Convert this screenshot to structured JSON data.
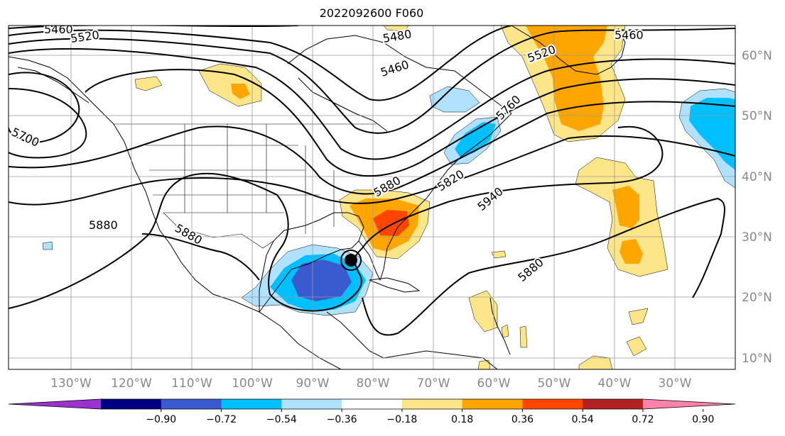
{
  "title": "2022092600 F060",
  "map": {
    "longitude_labels": [
      "130°W",
      "120°W",
      "110°W",
      "100°W",
      "90°W",
      "80°W",
      "70°W",
      "60°W",
      "50°W",
      "40°W",
      "30°W"
    ],
    "latitude_labels": [
      "60°N",
      "50°N",
      "40°N",
      "30°N",
      "20°N",
      "10°N"
    ],
    "contour_labels": [
      "5460",
      "5520",
      "5460",
      "5480",
      "5520",
      "5460",
      "5700",
      "5880",
      "5880",
      "5880",
      "5880",
      "5820",
      "5940",
      "5760"
    ],
    "storm_marker": "storm-center"
  },
  "colorbar": {
    "ticks": [
      "−0.90",
      "−0.72",
      "−0.54",
      "−0.36",
      "−0.18",
      "0.18",
      "0.36",
      "0.54",
      "0.72",
      "0.90"
    ],
    "colors": [
      "#9a32cd",
      "#000080",
      "#3a5bcf",
      "#00bfff",
      "#b0e2ff",
      "#ffffff",
      "#fde68a",
      "#ffa500",
      "#ff4500",
      "#b22222",
      "#ff82ab"
    ]
  }
}
